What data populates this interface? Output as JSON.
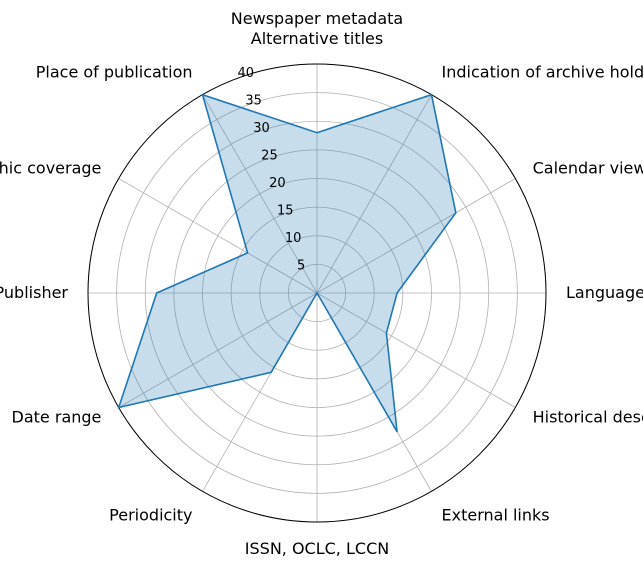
{
  "chart_data": {
    "type": "radar",
    "title": "Newspaper metadata",
    "categories": [
      "Alternative titles",
      "Indication of archive holder",
      "Calendar view of issues",
      "Language",
      "Historical description",
      "External links",
      "ISSN, OCLC, LCCN",
      "Periodicity",
      "Date range",
      "Publisher",
      "Geographic coverage",
      "Place of publication"
    ],
    "values": [
      28,
      40,
      28,
      14,
      14,
      28,
      0,
      16,
      40,
      28,
      14,
      40
    ],
    "rlim": [
      0,
      40
    ],
    "rticks": [
      "5",
      "10",
      "15",
      "20",
      "25",
      "30",
      "35",
      "40"
    ],
    "grid": true,
    "colors": {
      "line": "#1f77b4",
      "fill": "#1f77b4",
      "grid": "#b0b0b0",
      "frame": "#000000"
    }
  }
}
